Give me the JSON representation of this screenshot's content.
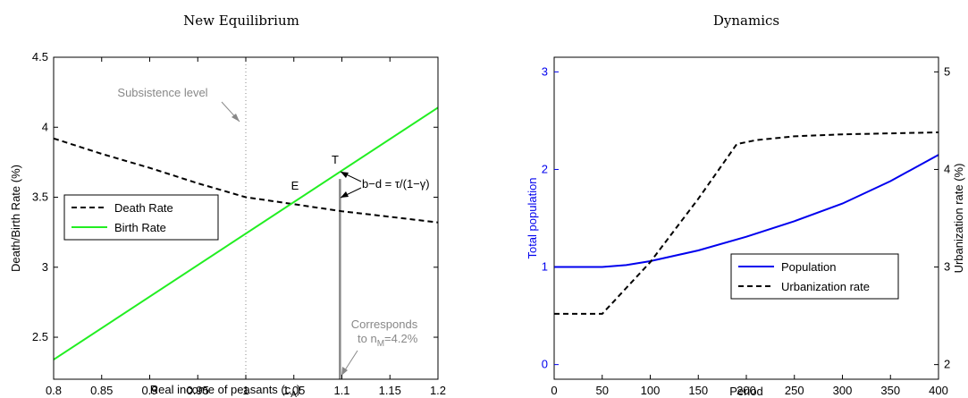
{
  "chart_data": [
    {
      "type": "line",
      "title": "New Equilibrium",
      "xlabel": "Real income of peasants (c",
      "xlabel_sub": "A",
      "xlabel_close": ")",
      "ylabel": "Death/Birth Rate (%)",
      "xlim": [
        0.8,
        1.2
      ],
      "ylim": [
        2.2,
        4.5
      ],
      "xticks": [
        0.8,
        0.85,
        0.9,
        0.95,
        1,
        1.05,
        1.1,
        1.15,
        1.2
      ],
      "xtick_labels": [
        "0.8",
        "0.85",
        "0.9",
        "0.95",
        "1",
        "1.05",
        "1.1",
        "1.15",
        "1.2"
      ],
      "yticks": [
        2.5,
        3,
        3.5,
        4,
        4.5
      ],
      "ytick_labels": [
        "2.5",
        "3",
        "3.5",
        "4",
        "4.5"
      ],
      "series": [
        {
          "name": "Death Rate",
          "style": "dashed",
          "color": "#000000",
          "points": [
            [
              0.8,
              3.92
            ],
            [
              0.85,
              3.81
            ],
            [
              0.9,
              3.71
            ],
            [
              0.95,
              3.6
            ],
            [
              1.0,
              3.5
            ],
            [
              1.05,
              3.45
            ],
            [
              1.1,
              3.4
            ],
            [
              1.15,
              3.36
            ],
            [
              1.2,
              3.32
            ]
          ]
        },
        {
          "name": "Birth Rate",
          "style": "solid",
          "color": "#22ee22",
          "points": [
            [
              0.8,
              2.34
            ],
            [
              1.2,
              4.14
            ]
          ]
        }
      ],
      "reference_lines": {
        "subsistence_x": 1.0,
        "t_line_x": 1.098,
        "t_line_top": 3.63
      },
      "annotations": {
        "subsistence_label": "Subsistence level",
        "point_e": "E",
        "point_t": "T",
        "bd_label": "b−d = τ/(1−γ)",
        "corresponds_line1": "Corresponds",
        "corresponds_line2": "to n",
        "corresponds_sub": "M",
        "corresponds_line2_end": "=4.2%"
      },
      "legend": {
        "placement": "middle-left",
        "entries": [
          "Death Rate",
          "Birth Rate"
        ]
      }
    },
    {
      "type": "line",
      "title": "Dynamics",
      "xlabel": "Period",
      "ylabel_left": "Total population",
      "ylabel_right": "Urbanization rate (%)",
      "xlim": [
        0,
        400
      ],
      "ylim_left": [
        -0.15,
        3.15
      ],
      "ylim_right": [
        1.85,
        5.15
      ],
      "xticks": [
        0,
        50,
        100,
        150,
        200,
        250,
        300,
        350,
        400
      ],
      "xtick_labels": [
        "0",
        "50",
        "100",
        "150",
        "200",
        "250",
        "300",
        "350",
        "400"
      ],
      "yticks_left": [
        0,
        1,
        2,
        3
      ],
      "ytick_labels_left": [
        "0",
        "1",
        "2",
        "3"
      ],
      "yticks_right": [
        2,
        3,
        4,
        5
      ],
      "ytick_labels_right": [
        "2",
        "3",
        "4",
        "5"
      ],
      "left_color": "#0000ee",
      "series": [
        {
          "name": "Population",
          "axis": "left",
          "style": "solid",
          "color": "#0000ee",
          "points": [
            [
              0,
              1.0
            ],
            [
              50,
              1.0
            ],
            [
              75,
              1.02
            ],
            [
              100,
              1.06
            ],
            [
              150,
              1.17
            ],
            [
              200,
              1.31
            ],
            [
              250,
              1.47
            ],
            [
              300,
              1.65
            ],
            [
              350,
              1.88
            ],
            [
              400,
              2.15
            ]
          ]
        },
        {
          "name": "Urbanization rate",
          "axis": "right",
          "style": "dashed",
          "color": "#000000",
          "points": [
            [
              0,
              2.52
            ],
            [
              50,
              2.52
            ],
            [
              100,
              3.05
            ],
            [
              150,
              3.7
            ],
            [
              190,
              4.26
            ],
            [
              210,
              4.3
            ],
            [
              250,
              4.34
            ],
            [
              300,
              4.36
            ],
            [
              350,
              4.37
            ],
            [
              400,
              4.38
            ]
          ]
        }
      ],
      "legend": {
        "placement": "lower-right",
        "entries": [
          "Population",
          "Urbanization rate"
        ]
      }
    }
  ]
}
